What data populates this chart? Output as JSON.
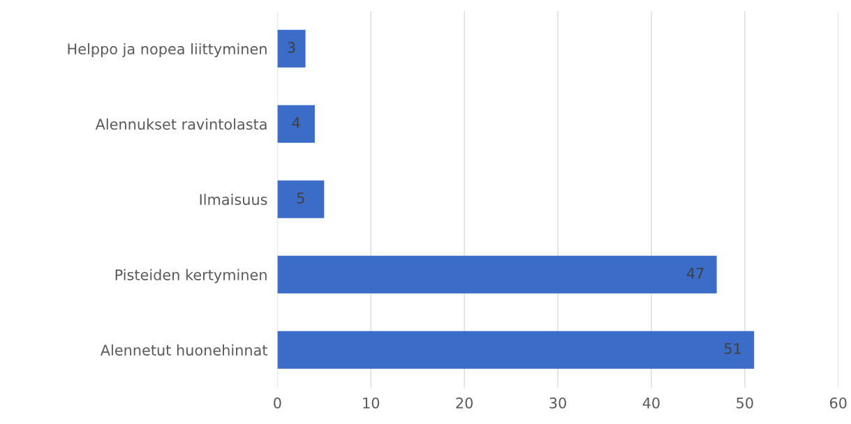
{
  "chart_data": {
    "type": "bar",
    "orientation": "horizontal",
    "categories": [
      "Helppo ja nopea liittyminen",
      "Alennukset ravintolasta",
      "Ilmaisuus",
      "Pisteiden kertyminen",
      "Alennetut huonehinnat"
    ],
    "values": [
      3,
      4,
      5,
      47,
      51
    ],
    "color": "#3b6cc7",
    "xlim": [
      0,
      60
    ],
    "xticks": [
      0,
      10,
      20,
      30,
      40,
      50,
      60
    ],
    "grid": "x",
    "data_labels": true
  }
}
